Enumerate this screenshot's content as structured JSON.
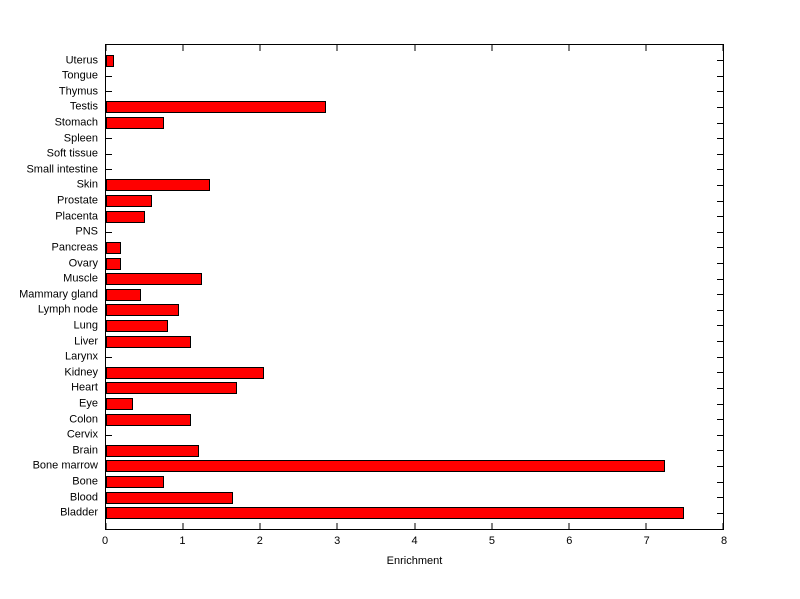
{
  "chart_data": {
    "type": "bar",
    "orientation": "horizontal",
    "title": "",
    "xlabel": "Enrichment",
    "xlim": [
      0,
      8
    ],
    "xticks": [
      0,
      1,
      2,
      3,
      4,
      5,
      6,
      7,
      8
    ],
    "grid": false,
    "legend": null,
    "bar_color": "#FF0000",
    "bar_edge_color": "#000000",
    "background_color": "#FFFFFF",
    "categories": [
      "Uterus",
      "Tongue",
      "Thymus",
      "Testis",
      "Stomach",
      "Spleen",
      "Soft tissue",
      "Small intestine",
      "Skin",
      "Prostate",
      "Placenta",
      "PNS",
      "Pancreas",
      "Ovary",
      "Muscle",
      "Mammary gland",
      "Lymph node",
      "Lung",
      "Liver",
      "Larynx",
      "Kidney",
      "Heart",
      "Eye",
      "Colon",
      "Cervix",
      "Brain",
      "Bone marrow",
      "Bone",
      "Blood",
      "Bladder"
    ],
    "values": [
      0.1,
      0,
      0,
      2.85,
      0.75,
      0,
      0,
      0,
      1.35,
      0.6,
      0.5,
      0,
      0.2,
      0.2,
      1.25,
      0.45,
      0.95,
      0.8,
      1.1,
      0,
      2.05,
      1.7,
      0.35,
      1.1,
      0,
      1.2,
      7.25,
      0.75,
      1.65,
      7.5
    ]
  }
}
